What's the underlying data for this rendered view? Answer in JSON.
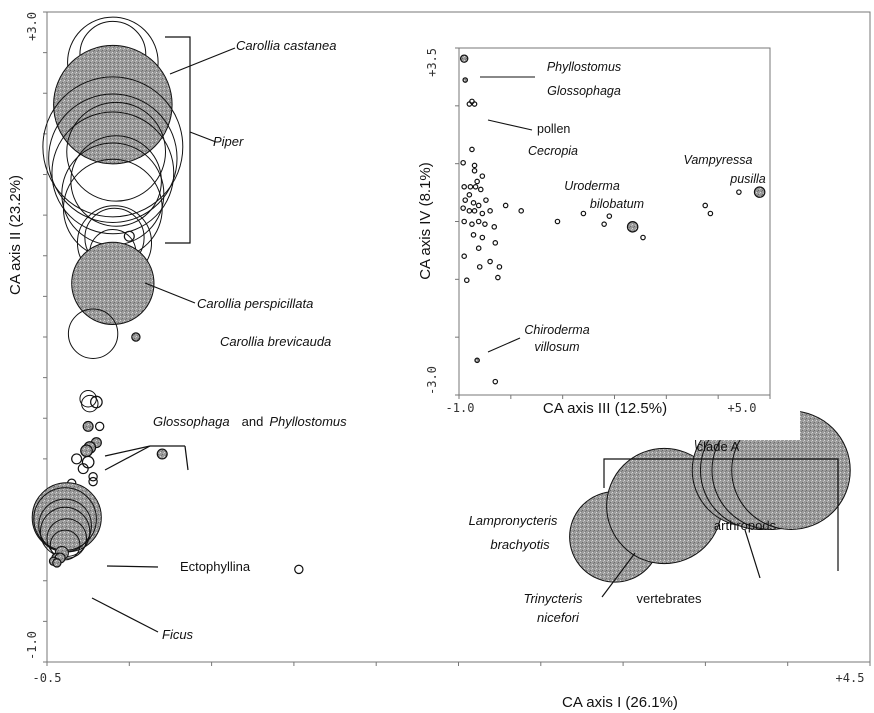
{
  "chart_data": [
    {
      "type": "scatter",
      "xlabel": "CA axis I (26.1%)",
      "ylabel": "CA axis II (23.2%)",
      "xlim": [
        -0.5,
        4.5
      ],
      "ylim": [
        -1.0,
        3.0
      ],
      "x_tick_labels": [
        "-0.5",
        "+4.5"
      ],
      "y_tick_labels": [
        "-1.0",
        "+3.0"
      ],
      "grid": false,
      "points": [
        {
          "x": -0.1,
          "y": 2.74,
          "r": 0.4,
          "filled": false
        },
        {
          "x": -0.1,
          "y": 2.69,
          "r": 0.55,
          "filled": false
        },
        {
          "x": -0.1,
          "y": 2.43,
          "r": 0.72,
          "filled": true
        },
        {
          "x": -0.1,
          "y": 2.17,
          "r": 0.85,
          "filled": false
        },
        {
          "x": -0.08,
          "y": 2.14,
          "r": 0.6,
          "filled": false
        },
        {
          "x": -0.1,
          "y": 2.1,
          "r": 0.78,
          "filled": false
        },
        {
          "x": -0.1,
          "y": 2.01,
          "r": 0.74,
          "filled": false
        },
        {
          "x": -0.08,
          "y": 1.96,
          "r": 0.55,
          "filled": false
        },
        {
          "x": -0.1,
          "y": 1.88,
          "r": 0.62,
          "filled": false
        },
        {
          "x": -0.1,
          "y": 1.79,
          "r": 0.6,
          "filled": false
        },
        {
          "x": -0.09,
          "y": 1.61,
          "r": 0.36,
          "filled": false
        },
        {
          "x": -0.09,
          "y": 1.58,
          "r": 0.45,
          "filled": false
        },
        {
          "x": -0.1,
          "y": 1.52,
          "r": 0.28,
          "filled": false
        },
        {
          "x": 0.0,
          "y": 1.62,
          "r": 0.06,
          "filled": false
        },
        {
          "x": -0.1,
          "y": 1.33,
          "r": 0.5,
          "filled": true
        },
        {
          "x": -0.22,
          "y": 1.02,
          "r": 0.3,
          "filled": false
        },
        {
          "x": 0.04,
          "y": 1.0,
          "r": 0.05,
          "filled": true
        },
        {
          "x": -0.25,
          "y": 0.62,
          "r": 0.1,
          "filled": false
        },
        {
          "x": -0.24,
          "y": 0.59,
          "r": 0.1,
          "filled": false
        },
        {
          "x": -0.2,
          "y": 0.6,
          "r": 0.07,
          "filled": false
        },
        {
          "x": -0.25,
          "y": 0.45,
          "r": 0.06,
          "filled": true
        },
        {
          "x": -0.2,
          "y": 0.35,
          "r": 0.06,
          "filled": true
        },
        {
          "x": -0.24,
          "y": 0.32,
          "r": 0.07,
          "filled": true
        },
        {
          "x": -0.26,
          "y": 0.3,
          "r": 0.07,
          "filled": true
        },
        {
          "x": -0.18,
          "y": 0.45,
          "r": 0.05,
          "filled": false
        },
        {
          "x": 0.2,
          "y": 0.28,
          "r": 0.06,
          "filled": true
        },
        {
          "x": -0.32,
          "y": 0.25,
          "r": 0.06,
          "filled": false
        },
        {
          "x": -0.25,
          "y": 0.23,
          "r": 0.07,
          "filled": false
        },
        {
          "x": -0.28,
          "y": 0.19,
          "r": 0.06,
          "filled": false
        },
        {
          "x": -0.22,
          "y": 0.14,
          "r": 0.05,
          "filled": false
        },
        {
          "x": -0.22,
          "y": 0.11,
          "r": 0.05,
          "filled": false
        },
        {
          "x": -0.35,
          "y": 0.1,
          "r": 0.05,
          "filled": false
        },
        {
          "x": -0.35,
          "y": -0.05,
          "r": 0.08,
          "filled": false
        },
        {
          "x": -0.38,
          "y": -0.11,
          "r": 0.42,
          "filled": true
        },
        {
          "x": -0.39,
          "y": -0.12,
          "r": 0.38,
          "filled": false
        },
        {
          "x": -0.39,
          "y": -0.16,
          "r": 0.32,
          "filled": false
        },
        {
          "x": -0.39,
          "y": -0.2,
          "r": 0.3,
          "filled": false
        },
        {
          "x": -0.38,
          "y": -0.24,
          "r": 0.24,
          "filled": false
        },
        {
          "x": -0.39,
          "y": -0.28,
          "r": 0.18,
          "filled": false
        },
        {
          "x": -0.41,
          "y": -0.33,
          "r": 0.08,
          "filled": true
        },
        {
          "x": -0.44,
          "y": -0.36,
          "r": 0.06,
          "filled": true
        },
        {
          "x": -0.42,
          "y": -0.36,
          "r": 0.06,
          "filled": true
        },
        {
          "x": -0.46,
          "y": -0.38,
          "r": 0.05,
          "filled": true
        },
        {
          "x": -0.44,
          "y": -0.39,
          "r": 0.05,
          "filled": true
        },
        {
          "x": 1.03,
          "y": -0.43,
          "r": 0.05,
          "filled": false
        },
        {
          "x": 3.24,
          "y": -0.3,
          "r": 0.05,
          "filled": false
        },
        {
          "x": 2.95,
          "y": -0.23,
          "r": 0.55,
          "filled": true
        },
        {
          "x": 3.25,
          "y": -0.04,
          "r": 0.7,
          "filled": true
        },
        {
          "x": 3.75,
          "y": 0.37,
          "r": 0.62,
          "filled": false
        },
        {
          "x": 3.76,
          "y": 0.18,
          "r": 0.68,
          "filled": true
        },
        {
          "x": 3.83,
          "y": 0.18,
          "r": 0.72,
          "filled": true
        },
        {
          "x": 3.9,
          "y": 0.18,
          "r": 0.72,
          "filled": true
        },
        {
          "x": 4.02,
          "y": 0.18,
          "r": 0.72,
          "filled": true
        }
      ],
      "annotations": {
        "carollia_castanea": "Carollia  castanea",
        "piper": "Piper",
        "carollia_perspicillata": "Carollia perspicillata",
        "carollia_brevicauda": "Carollia brevicauda",
        "glossophaga": "Glossophaga",
        "and_word": "and",
        "phyllostomus": "Phyllostomus",
        "ectophyllina": "Ectophyllina",
        "ficus": "Ficus",
        "clade_a": "clade A",
        "lampronycteris_1": "Lampronycteris",
        "lampronycteris_2": "brachyotis",
        "arthropods": "arthropods",
        "trinycteris_1": "Trinycteris",
        "trinycteris_2": "nicefori",
        "vertebrates": "vertebrates"
      }
    },
    {
      "type": "scatter",
      "xlabel": "CA axis III (12.5%)",
      "ylabel": "CA axis IV (8.1%)",
      "xlim": [
        -1.0,
        5.0
      ],
      "ylim": [
        -3.0,
        3.5
      ],
      "x_tick_labels": [
        "-1.0",
        "+5.0"
      ],
      "y_tick_labels": [
        "+3.5",
        "-3.0"
      ],
      "grid": false,
      "points": [
        {
          "x": -0.9,
          "y": 3.3,
          "r": 0.14,
          "filled": true
        },
        {
          "x": -0.88,
          "y": 2.9,
          "r": 0.07,
          "filled": true
        },
        {
          "x": -0.8,
          "y": 2.45,
          "r": 0.05,
          "filled": false
        },
        {
          "x": -0.75,
          "y": 2.5,
          "r": 0.05,
          "filled": false
        },
        {
          "x": -0.7,
          "y": 2.45,
          "r": 0.05,
          "filled": false
        },
        {
          "x": -0.75,
          "y": 1.6,
          "r": 0.05,
          "filled": false
        },
        {
          "x": -0.7,
          "y": 1.3,
          "r": 0.05,
          "filled": false
        },
        {
          "x": -0.92,
          "y": 1.35,
          "r": 0.05,
          "filled": false
        },
        {
          "x": -0.7,
          "y": 1.2,
          "r": 0.05,
          "filled": false
        },
        {
          "x": -0.55,
          "y": 1.1,
          "r": 0.05,
          "filled": false
        },
        {
          "x": -0.65,
          "y": 1.0,
          "r": 0.05,
          "filled": false
        },
        {
          "x": -0.9,
          "y": 0.9,
          "r": 0.05,
          "filled": false
        },
        {
          "x": -0.78,
          "y": 0.9,
          "r": 0.05,
          "filled": false
        },
        {
          "x": -0.68,
          "y": 0.9,
          "r": 0.05,
          "filled": false
        },
        {
          "x": -0.58,
          "y": 0.85,
          "r": 0.05,
          "filled": false
        },
        {
          "x": -0.8,
          "y": 0.75,
          "r": 0.05,
          "filled": false
        },
        {
          "x": -0.88,
          "y": 0.65,
          "r": 0.05,
          "filled": false
        },
        {
          "x": -0.72,
          "y": 0.6,
          "r": 0.05,
          "filled": false
        },
        {
          "x": -0.62,
          "y": 0.55,
          "r": 0.05,
          "filled": false
        },
        {
          "x": -0.48,
          "y": 0.65,
          "r": 0.05,
          "filled": false
        },
        {
          "x": -0.92,
          "y": 0.5,
          "r": 0.05,
          "filled": false
        },
        {
          "x": -0.8,
          "y": 0.45,
          "r": 0.05,
          "filled": false
        },
        {
          "x": -0.7,
          "y": 0.45,
          "r": 0.05,
          "filled": false
        },
        {
          "x": -0.55,
          "y": 0.4,
          "r": 0.05,
          "filled": false
        },
        {
          "x": -0.4,
          "y": 0.45,
          "r": 0.05,
          "filled": false
        },
        {
          "x": -0.1,
          "y": 0.55,
          "r": 0.05,
          "filled": false
        },
        {
          "x": 0.2,
          "y": 0.45,
          "r": 0.05,
          "filled": false
        },
        {
          "x": -0.9,
          "y": 0.25,
          "r": 0.05,
          "filled": false
        },
        {
          "x": -0.75,
          "y": 0.2,
          "r": 0.05,
          "filled": false
        },
        {
          "x": -0.62,
          "y": 0.25,
          "r": 0.05,
          "filled": false
        },
        {
          "x": -0.5,
          "y": 0.2,
          "r": 0.05,
          "filled": false
        },
        {
          "x": -0.32,
          "y": 0.15,
          "r": 0.05,
          "filled": false
        },
        {
          "x": -0.72,
          "y": 0.0,
          "r": 0.05,
          "filled": false
        },
        {
          "x": -0.55,
          "y": -0.05,
          "r": 0.05,
          "filled": false
        },
        {
          "x": -0.3,
          "y": -0.15,
          "r": 0.05,
          "filled": false
        },
        {
          "x": -0.62,
          "y": -0.25,
          "r": 0.05,
          "filled": false
        },
        {
          "x": -0.9,
          "y": -0.4,
          "r": 0.05,
          "filled": false
        },
        {
          "x": -0.4,
          "y": -0.5,
          "r": 0.05,
          "filled": false
        },
        {
          "x": -0.22,
          "y": -0.6,
          "r": 0.05,
          "filled": false
        },
        {
          "x": -0.6,
          "y": -0.6,
          "r": 0.05,
          "filled": false
        },
        {
          "x": -0.85,
          "y": -0.85,
          "r": 0.05,
          "filled": false
        },
        {
          "x": -0.25,
          "y": -0.8,
          "r": 0.05,
          "filled": false
        },
        {
          "x": 0.9,
          "y": 0.25,
          "r": 0.05,
          "filled": false
        },
        {
          "x": 1.4,
          "y": 0.4,
          "r": 0.05,
          "filled": false
        },
        {
          "x": 1.9,
          "y": 0.35,
          "r": 0.05,
          "filled": false
        },
        {
          "x": 1.8,
          "y": 0.2,
          "r": 0.05,
          "filled": false
        },
        {
          "x": 2.35,
          "y": 0.15,
          "r": 0.2,
          "filled": true
        },
        {
          "x": 2.55,
          "y": -0.05,
          "r": 0.05,
          "filled": false
        },
        {
          "x": 3.75,
          "y": 0.55,
          "r": 0.05,
          "filled": false
        },
        {
          "x": 3.85,
          "y": 0.4,
          "r": 0.05,
          "filled": false
        },
        {
          "x": 4.4,
          "y": 0.8,
          "r": 0.05,
          "filled": false
        },
        {
          "x": 4.8,
          "y": 0.8,
          "r": 0.2,
          "filled": true
        },
        {
          "x": -0.65,
          "y": -2.35,
          "r": 0.08,
          "filled": true
        },
        {
          "x": -0.3,
          "y": -2.75,
          "r": 0.05,
          "filled": false
        }
      ],
      "annotations": {
        "phyllostomus": "Phyllostomus",
        "glossophaga": "Glossophaga",
        "pollen": "pollen",
        "cecropia": "Cecropia",
        "uroderma_1": "Uroderma",
        "uroderma_2": "bilobatum",
        "vampyressa_1": "Vampyressa",
        "vampyressa_2": "pusilla",
        "chiroderma_1": "Chiroderma",
        "chiroderma_2": "villosum"
      }
    }
  ]
}
